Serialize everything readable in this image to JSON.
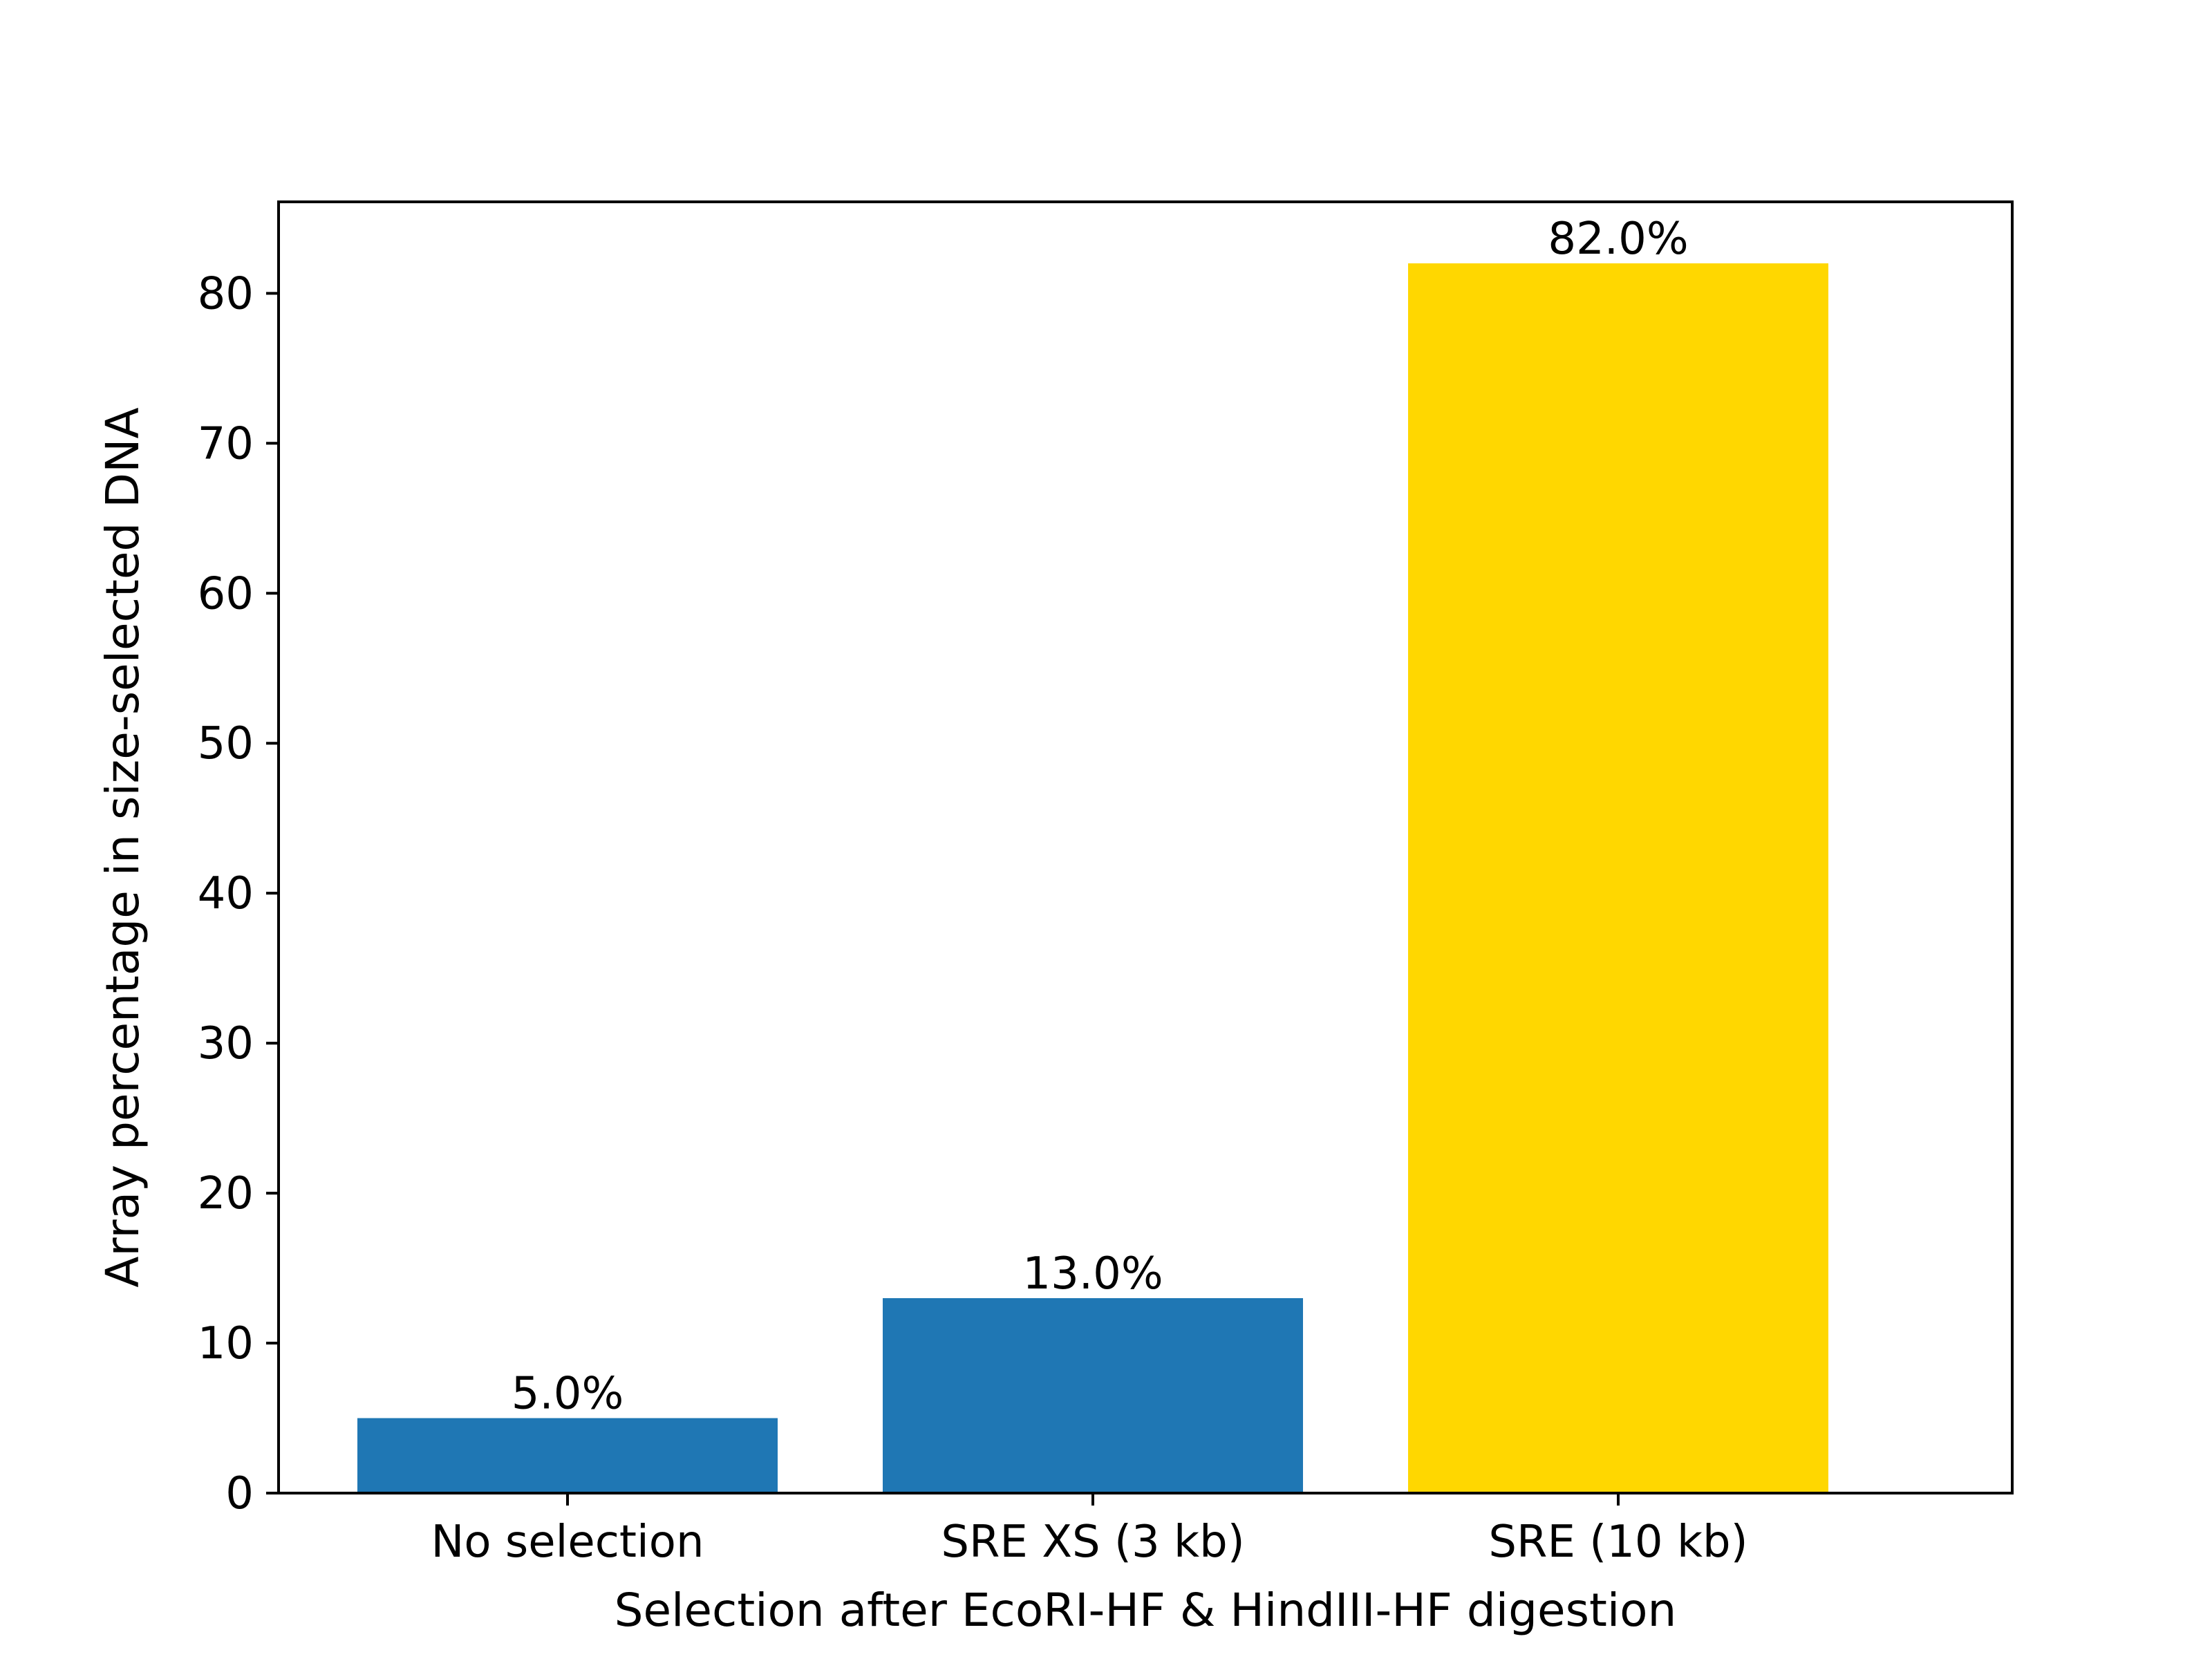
{
  "chart_data": {
    "type": "bar",
    "title": "",
    "xlabel": "Selection after EcoRI-HF & HindIII-HF digestion",
    "ylabel": "Array percentage in size-selected DNA",
    "categories": [
      "No selection",
      "SRE XS (3 kb)",
      "SRE (10 kb)"
    ],
    "values": [
      5.0,
      13.0,
      82.0
    ],
    "data_labels": [
      "5.0%",
      "13.0%",
      "82.0%"
    ],
    "bar_colors": [
      "#1f77b4",
      "#1f77b4",
      "#ffd700"
    ],
    "ylim": [
      0,
      86.1
    ],
    "yticks": [
      0,
      10,
      20,
      30,
      40,
      50,
      60,
      70,
      80
    ],
    "grid": false,
    "legend": "none"
  }
}
